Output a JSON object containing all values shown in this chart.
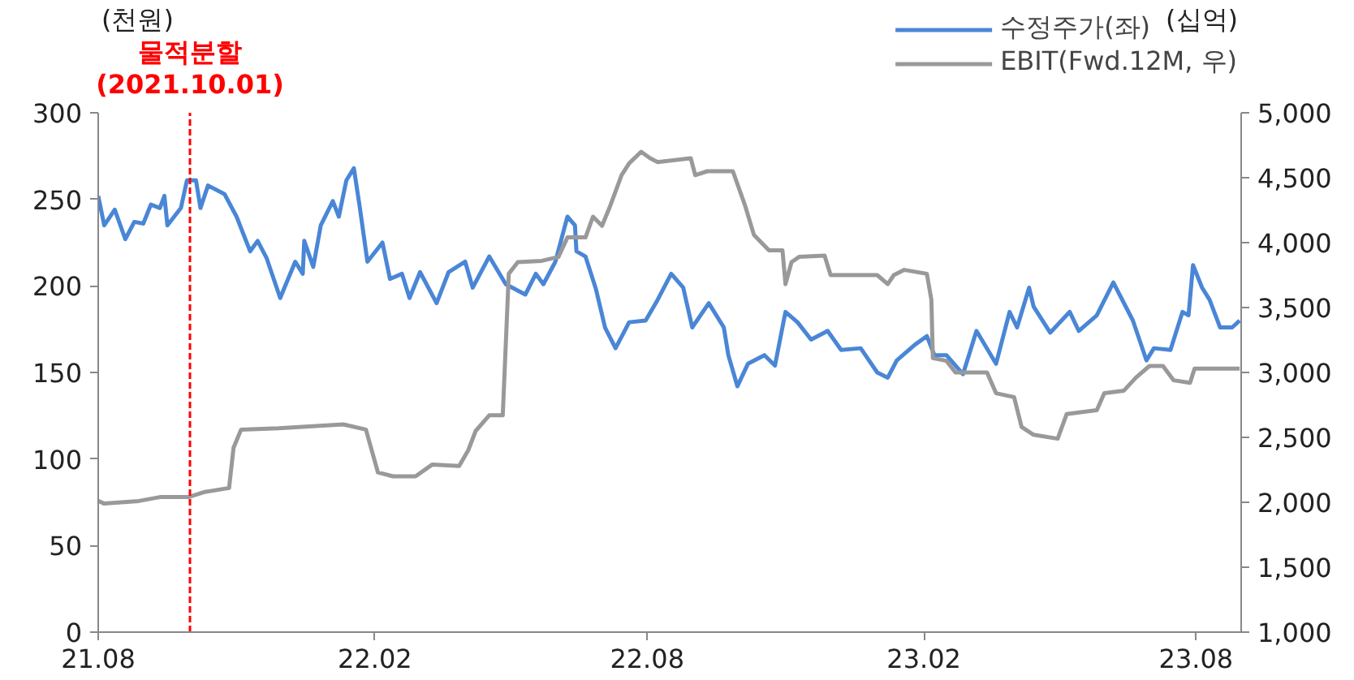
{
  "chart_data": {
    "type": "line",
    "ylabel": "(천원)",
    "y2label": "(십억)",
    "xlim": [
      "2021-08-01",
      "2023-08-31"
    ],
    "xticks": [
      {
        "value": "2021-08-01",
        "label": "21.08"
      },
      {
        "value": "2022-02-01",
        "label": "22.02"
      },
      {
        "value": "2022-08-01",
        "label": "22.08"
      },
      {
        "value": "2023-02-01",
        "label": "23.02"
      },
      {
        "value": "2023-08-01",
        "label": "23.08"
      }
    ],
    "ylim": [
      0,
      300
    ],
    "yticks": [
      0,
      50,
      100,
      150,
      200,
      250,
      300
    ],
    "y2lim": [
      1000,
      5000
    ],
    "y2ticks": [
      {
        "value": 1000,
        "label": "1,000"
      },
      {
        "value": 1500,
        "label": "1,500"
      },
      {
        "value": 2000,
        "label": "2,000"
      },
      {
        "value": 2500,
        "label": "2,500"
      },
      {
        "value": 3000,
        "label": "3,000"
      },
      {
        "value": 3500,
        "label": "3,500"
      },
      {
        "value": 4000,
        "label": "4,000"
      },
      {
        "value": 4500,
        "label": "4,500"
      },
      {
        "value": 5000,
        "label": "5,000"
      }
    ],
    "grid": false,
    "legend": "top right",
    "line_style": "solid",
    "ref_lines": [
      {
        "axis": "x",
        "value": "2021-10-01",
        "label": "물적분할\n(2021.10.01)",
        "color": "#ff0000",
        "line_style": "dashed"
      }
    ],
    "series": [
      {
        "name": "수정주가(좌)",
        "color": "#4a86d6",
        "x": [
          "2021-08-01",
          "2021-08-05",
          "2021-08-12",
          "2021-08-19",
          "2021-08-25",
          "2021-08-31",
          "2021-09-05",
          "2021-09-11",
          "2021-09-14",
          "2021-09-16",
          "2021-09-25",
          "2021-09-29",
          "2021-10-05",
          "2021-10-08",
          "2021-10-13",
          "2021-10-24",
          "2021-11-01",
          "2021-11-10",
          "2021-11-15",
          "2021-11-21",
          "2021-11-30",
          "2021-12-10",
          "2021-12-15",
          "2021-12-16",
          "2021-12-22",
          "2021-12-27",
          "2022-01-04",
          "2022-01-08",
          "2022-01-13",
          "2022-01-18",
          "2022-01-22",
          "2022-01-27",
          "2022-02-06",
          "2022-02-11",
          "2022-02-19",
          "2022-02-24",
          "2022-03-03",
          "2022-03-14",
          "2022-03-22",
          "2022-04-02",
          "2022-04-07",
          "2022-04-18",
          "2022-04-29",
          "2022-05-12",
          "2022-05-19",
          "2022-05-24",
          "2022-06-01",
          "2022-06-09",
          "2022-06-14",
          "2022-06-15",
          "2022-06-21",
          "2022-06-28",
          "2022-07-04",
          "2022-07-11",
          "2022-07-20",
          "2022-07-31",
          "2022-08-08",
          "2022-08-17",
          "2022-08-25",
          "2022-08-31",
          "2022-09-11",
          "2022-09-21",
          "2022-09-24",
          "2022-09-30",
          "2022-10-07",
          "2022-10-18",
          "2022-10-25",
          "2022-11-01",
          "2022-11-09",
          "2022-11-18",
          "2022-11-29",
          "2022-12-08",
          "2022-12-21",
          "2023-01-01",
          "2023-01-08",
          "2023-01-14",
          "2023-01-26",
          "2023-02-03",
          "2023-02-08",
          "2023-02-16",
          "2023-02-27",
          "2023-03-08",
          "2023-03-21",
          "2023-03-30",
          "2023-04-04",
          "2023-04-12",
          "2023-04-15",
          "2023-04-26",
          "2023-05-09",
          "2023-05-15",
          "2023-05-27",
          "2023-06-07",
          "2023-06-20",
          "2023-06-29",
          "2023-07-04",
          "2023-07-15",
          "2023-07-23",
          "2023-07-27",
          "2023-07-30",
          "2023-08-05",
          "2023-08-10",
          "2023-08-17",
          "2023-08-25",
          "2023-08-30"
        ],
        "values": [
          252,
          235,
          244,
          227,
          237,
          236,
          247,
          245,
          252,
          235,
          245,
          261,
          261,
          245,
          258,
          253,
          240,
          220,
          226,
          216,
          193,
          214,
          207,
          226,
          211,
          235,
          249,
          240,
          261,
          268,
          245,
          214,
          225,
          204,
          207,
          193,
          208,
          190,
          208,
          214,
          199,
          217,
          201,
          195,
          207,
          201,
          214,
          240,
          235,
          220,
          217,
          198,
          176,
          164,
          179,
          180,
          192,
          207,
          199,
          176,
          190,
          176,
          160,
          142,
          155,
          160,
          154,
          185,
          179,
          169,
          174,
          163,
          164,
          150,
          147,
          157,
          166,
          171,
          160,
          160,
          149,
          174,
          155,
          185,
          176,
          199,
          188,
          173,
          185,
          174,
          183,
          202,
          180,
          157,
          164,
          163,
          185,
          183,
          212,
          199,
          192,
          176,
          176,
          180
        ]
      },
      {
        "name": "EBIT(Fwd.12M, 우)",
        "color": "#999999",
        "axis": "y2",
        "x": [
          "2021-08-01",
          "2021-08-05",
          "2021-08-28",
          "2021-09-11",
          "2021-09-30",
          "2021-10-11",
          "2021-10-27",
          "2021-10-30",
          "2021-11-04",
          "2021-11-29",
          "2022-01-11",
          "2022-01-26",
          "2022-02-03",
          "2022-02-13",
          "2022-02-28",
          "2022-03-11",
          "2022-03-29",
          "2022-04-04",
          "2022-04-09",
          "2022-04-18",
          "2022-04-27",
          "2022-05-01",
          "2022-05-07",
          "2022-05-23",
          "2022-06-03",
          "2022-06-09",
          "2022-06-21",
          "2022-06-26",
          "2022-07-02",
          "2022-07-07",
          "2022-07-15",
          "2022-07-20",
          "2022-07-28",
          "2022-08-03",
          "2022-08-08",
          "2022-08-30",
          "2022-09-02",
          "2022-09-10",
          "2022-09-27",
          "2022-10-05",
          "2022-10-11",
          "2022-10-16",
          "2022-10-21",
          "2022-10-30",
          "2022-11-01",
          "2022-11-05",
          "2022-11-10",
          "2022-11-27",
          "2022-12-01",
          "2023-01-01",
          "2023-01-08",
          "2023-01-12",
          "2023-01-19",
          "2023-02-03",
          "2023-02-06",
          "2023-02-07",
          "2023-02-16",
          "2023-02-22",
          "2023-03-15",
          "2023-03-21",
          "2023-04-02",
          "2023-04-07",
          "2023-04-15",
          "2023-05-01",
          "2023-05-07",
          "2023-05-27",
          "2023-06-01",
          "2023-06-14",
          "2023-06-22",
          "2023-07-01",
          "2023-07-10",
          "2023-07-17",
          "2023-07-28",
          "2023-07-31",
          "2023-08-30"
        ],
        "values": [
          2010,
          1990,
          2010,
          2040,
          2040,
          2080,
          2110,
          2420,
          2560,
          2570,
          2600,
          2560,
          2230,
          2200,
          2200,
          2290,
          2280,
          2400,
          2550,
          2670,
          2670,
          3760,
          3850,
          3860,
          3890,
          4040,
          4040,
          4200,
          4130,
          4270,
          4520,
          4610,
          4700,
          4650,
          4620,
          4650,
          4520,
          4550,
          4550,
          4290,
          4060,
          4000,
          3940,
          3940,
          3680,
          3850,
          3890,
          3900,
          3750,
          3750,
          3680,
          3750,
          3790,
          3760,
          3560,
          3110,
          3090,
          3000,
          3000,
          2840,
          2810,
          2580,
          2520,
          2490,
          2680,
          2710,
          2840,
          2860,
          2960,
          3050,
          3050,
          2940,
          2920,
          3030,
          3030
        ]
      }
    ]
  }
}
